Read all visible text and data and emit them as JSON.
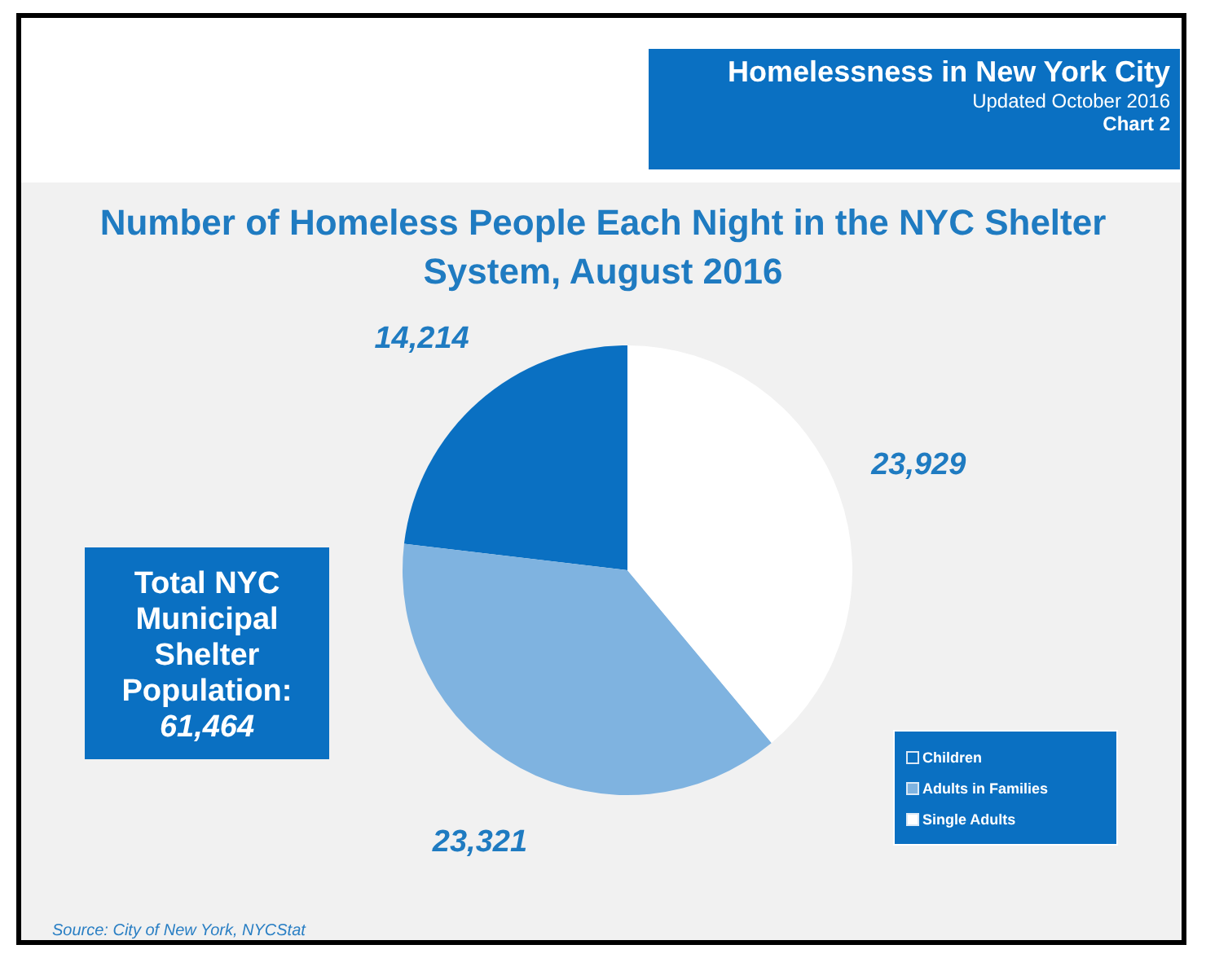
{
  "chart_data": {
    "type": "pie",
    "title": "Number of Homeless People Each Night in the NYC Shelter System, August 2016",
    "annotations": [
      "Homelessness in New York City",
      "Updated October 2016",
      "Chart 2",
      "Total NYC Municipal Shelter Population:",
      "61,464",
      "Source:  City of New York, NYCStat"
    ],
    "categories": [
      "Children",
      "Adults in Families",
      "Single Adults"
    ],
    "values": [
      14214,
      23321,
      23929
    ],
    "colors": [
      "#0a70c2",
      "#7fb3e0",
      "#ffffff"
    ],
    "value_labels": [
      "14,214",
      "23,321",
      "23,929"
    ],
    "legend": "bottom right"
  }
}
